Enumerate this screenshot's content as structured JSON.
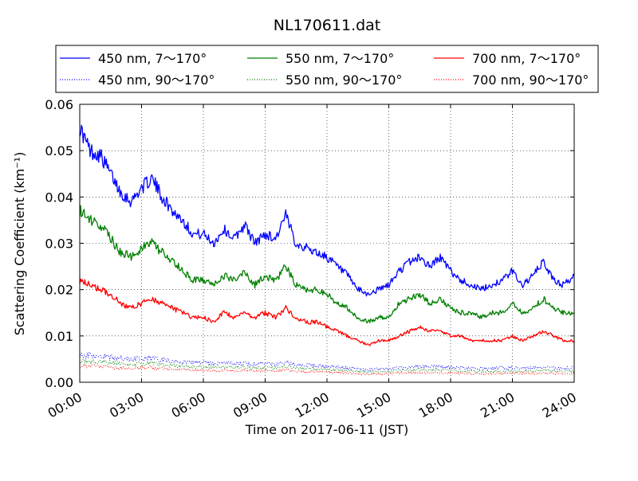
{
  "chart_data": {
    "type": "line",
    "title": "NL170611.dat",
    "xlabel": "Time on 2017-06-11 (JST)",
    "ylabel": "Scattering Coefficient (km⁻¹)",
    "xlim": [
      "00:00",
      "24:00"
    ],
    "ylim": [
      0,
      0.06
    ],
    "grid": true,
    "legend_position": "top",
    "x_ticks": [
      "00:00",
      "03:00",
      "06:00",
      "09:00",
      "12:00",
      "15:00",
      "18:00",
      "21:00",
      "24:00"
    ],
    "y_ticks": [
      "0.00",
      "0.01",
      "0.02",
      "0.03",
      "0.04",
      "0.05",
      "0.06"
    ],
    "x": [
      "00:00",
      "00:30",
      "01:00",
      "01:30",
      "02:00",
      "02:30",
      "03:00",
      "03:30",
      "04:00",
      "04:30",
      "05:00",
      "05:30",
      "06:00",
      "06:30",
      "07:00",
      "07:30",
      "08:00",
      "08:30",
      "09:00",
      "09:30",
      "10:00",
      "10:30",
      "11:00",
      "11:30",
      "12:00",
      "12:30",
      "13:00",
      "13:30",
      "14:00",
      "14:30",
      "15:00",
      "15:30",
      "16:00",
      "16:30",
      "17:00",
      "17:30",
      "18:00",
      "18:30",
      "19:00",
      "19:30",
      "20:00",
      "20:30",
      "21:00",
      "21:30",
      "22:00",
      "22:30",
      "23:00",
      "23:30",
      "24:00"
    ],
    "series": [
      {
        "name": "450 nm, 7～170°",
        "color": "#0000ff",
        "style": "solid",
        "values": [
          0.055,
          0.05,
          0.049,
          0.045,
          0.041,
          0.039,
          0.042,
          0.044,
          0.04,
          0.037,
          0.035,
          0.032,
          0.032,
          0.03,
          0.033,
          0.031,
          0.034,
          0.03,
          0.032,
          0.031,
          0.036,
          0.03,
          0.029,
          0.028,
          0.027,
          0.025,
          0.023,
          0.02,
          0.019,
          0.02,
          0.021,
          0.024,
          0.026,
          0.027,
          0.025,
          0.027,
          0.024,
          0.022,
          0.021,
          0.02,
          0.021,
          0.022,
          0.024,
          0.021,
          0.023,
          0.026,
          0.022,
          0.021,
          0.023
        ]
      },
      {
        "name": "550 nm, 7～170°",
        "color": "#008000",
        "style": "solid",
        "values": [
          0.037,
          0.035,
          0.034,
          0.031,
          0.028,
          0.027,
          0.029,
          0.03,
          0.028,
          0.026,
          0.024,
          0.022,
          0.022,
          0.021,
          0.023,
          0.022,
          0.024,
          0.021,
          0.023,
          0.022,
          0.025,
          0.021,
          0.02,
          0.02,
          0.019,
          0.017,
          0.016,
          0.014,
          0.013,
          0.014,
          0.014,
          0.017,
          0.018,
          0.019,
          0.017,
          0.018,
          0.016,
          0.015,
          0.015,
          0.014,
          0.015,
          0.015,
          0.017,
          0.015,
          0.016,
          0.018,
          0.016,
          0.015,
          0.015
        ]
      },
      {
        "name": "700 nm, 7～170°",
        "color": "#ff0000",
        "style": "solid",
        "values": [
          0.022,
          0.021,
          0.02,
          0.019,
          0.017,
          0.016,
          0.017,
          0.018,
          0.017,
          0.016,
          0.015,
          0.014,
          0.014,
          0.013,
          0.015,
          0.014,
          0.015,
          0.014,
          0.015,
          0.014,
          0.016,
          0.014,
          0.013,
          0.013,
          0.012,
          0.011,
          0.01,
          0.009,
          0.008,
          0.009,
          0.009,
          0.01,
          0.011,
          0.012,
          0.011,
          0.011,
          0.01,
          0.01,
          0.009,
          0.009,
          0.009,
          0.009,
          0.01,
          0.009,
          0.01,
          0.011,
          0.01,
          0.009,
          0.009
        ]
      },
      {
        "name": "450 nm, 90～170°",
        "color": "#0000ff",
        "style": "dotted",
        "values": [
          0.006,
          0.0058,
          0.0056,
          0.0054,
          0.0052,
          0.005,
          0.0051,
          0.0052,
          0.0048,
          0.0046,
          0.0044,
          0.0042,
          0.0042,
          0.004,
          0.0041,
          0.004,
          0.0041,
          0.0039,
          0.004,
          0.0039,
          0.0043,
          0.0039,
          0.0037,
          0.0036,
          0.0035,
          0.0033,
          0.0031,
          0.0029,
          0.0027,
          0.0028,
          0.0029,
          0.0031,
          0.0033,
          0.0034,
          0.0033,
          0.0034,
          0.0032,
          0.0031,
          0.003,
          0.003,
          0.003,
          0.0031,
          0.0032,
          0.003,
          0.0031,
          0.0033,
          0.0031,
          0.003,
          0.0031
        ]
      },
      {
        "name": "550 nm, 90～170°",
        "color": "#008000",
        "style": "dotted",
        "values": [
          0.0047,
          0.0045,
          0.0044,
          0.0042,
          0.004,
          0.0039,
          0.004,
          0.0041,
          0.0038,
          0.0036,
          0.0035,
          0.0033,
          0.0033,
          0.0032,
          0.0033,
          0.0032,
          0.0033,
          0.0031,
          0.0032,
          0.0031,
          0.0034,
          0.0031,
          0.003,
          0.0029,
          0.0028,
          0.0026,
          0.0025,
          0.0023,
          0.0022,
          0.0022,
          0.0023,
          0.0025,
          0.0026,
          0.0027,
          0.0026,
          0.0027,
          0.0025,
          0.0024,
          0.0024,
          0.0023,
          0.0024,
          0.0024,
          0.0025,
          0.0024,
          0.0024,
          0.0026,
          0.0024,
          0.0023,
          0.0024
        ]
      },
      {
        "name": "700 nm, 90～170°",
        "color": "#ff0000",
        "style": "dotted",
        "values": [
          0.0036,
          0.0035,
          0.0034,
          0.0032,
          0.0031,
          0.003,
          0.0031,
          0.0031,
          0.0029,
          0.0028,
          0.0027,
          0.0026,
          0.0026,
          0.0025,
          0.0026,
          0.0025,
          0.0026,
          0.0024,
          0.0025,
          0.0024,
          0.0027,
          0.0024,
          0.0023,
          0.0023,
          0.0022,
          0.0021,
          0.002,
          0.0018,
          0.0017,
          0.0018,
          0.0018,
          0.002,
          0.0021,
          0.0021,
          0.002,
          0.0021,
          0.002,
          0.0019,
          0.0019,
          0.0018,
          0.0019,
          0.0019,
          0.002,
          0.0019,
          0.0019,
          0.002,
          0.0019,
          0.0018,
          0.0019
        ]
      }
    ]
  }
}
